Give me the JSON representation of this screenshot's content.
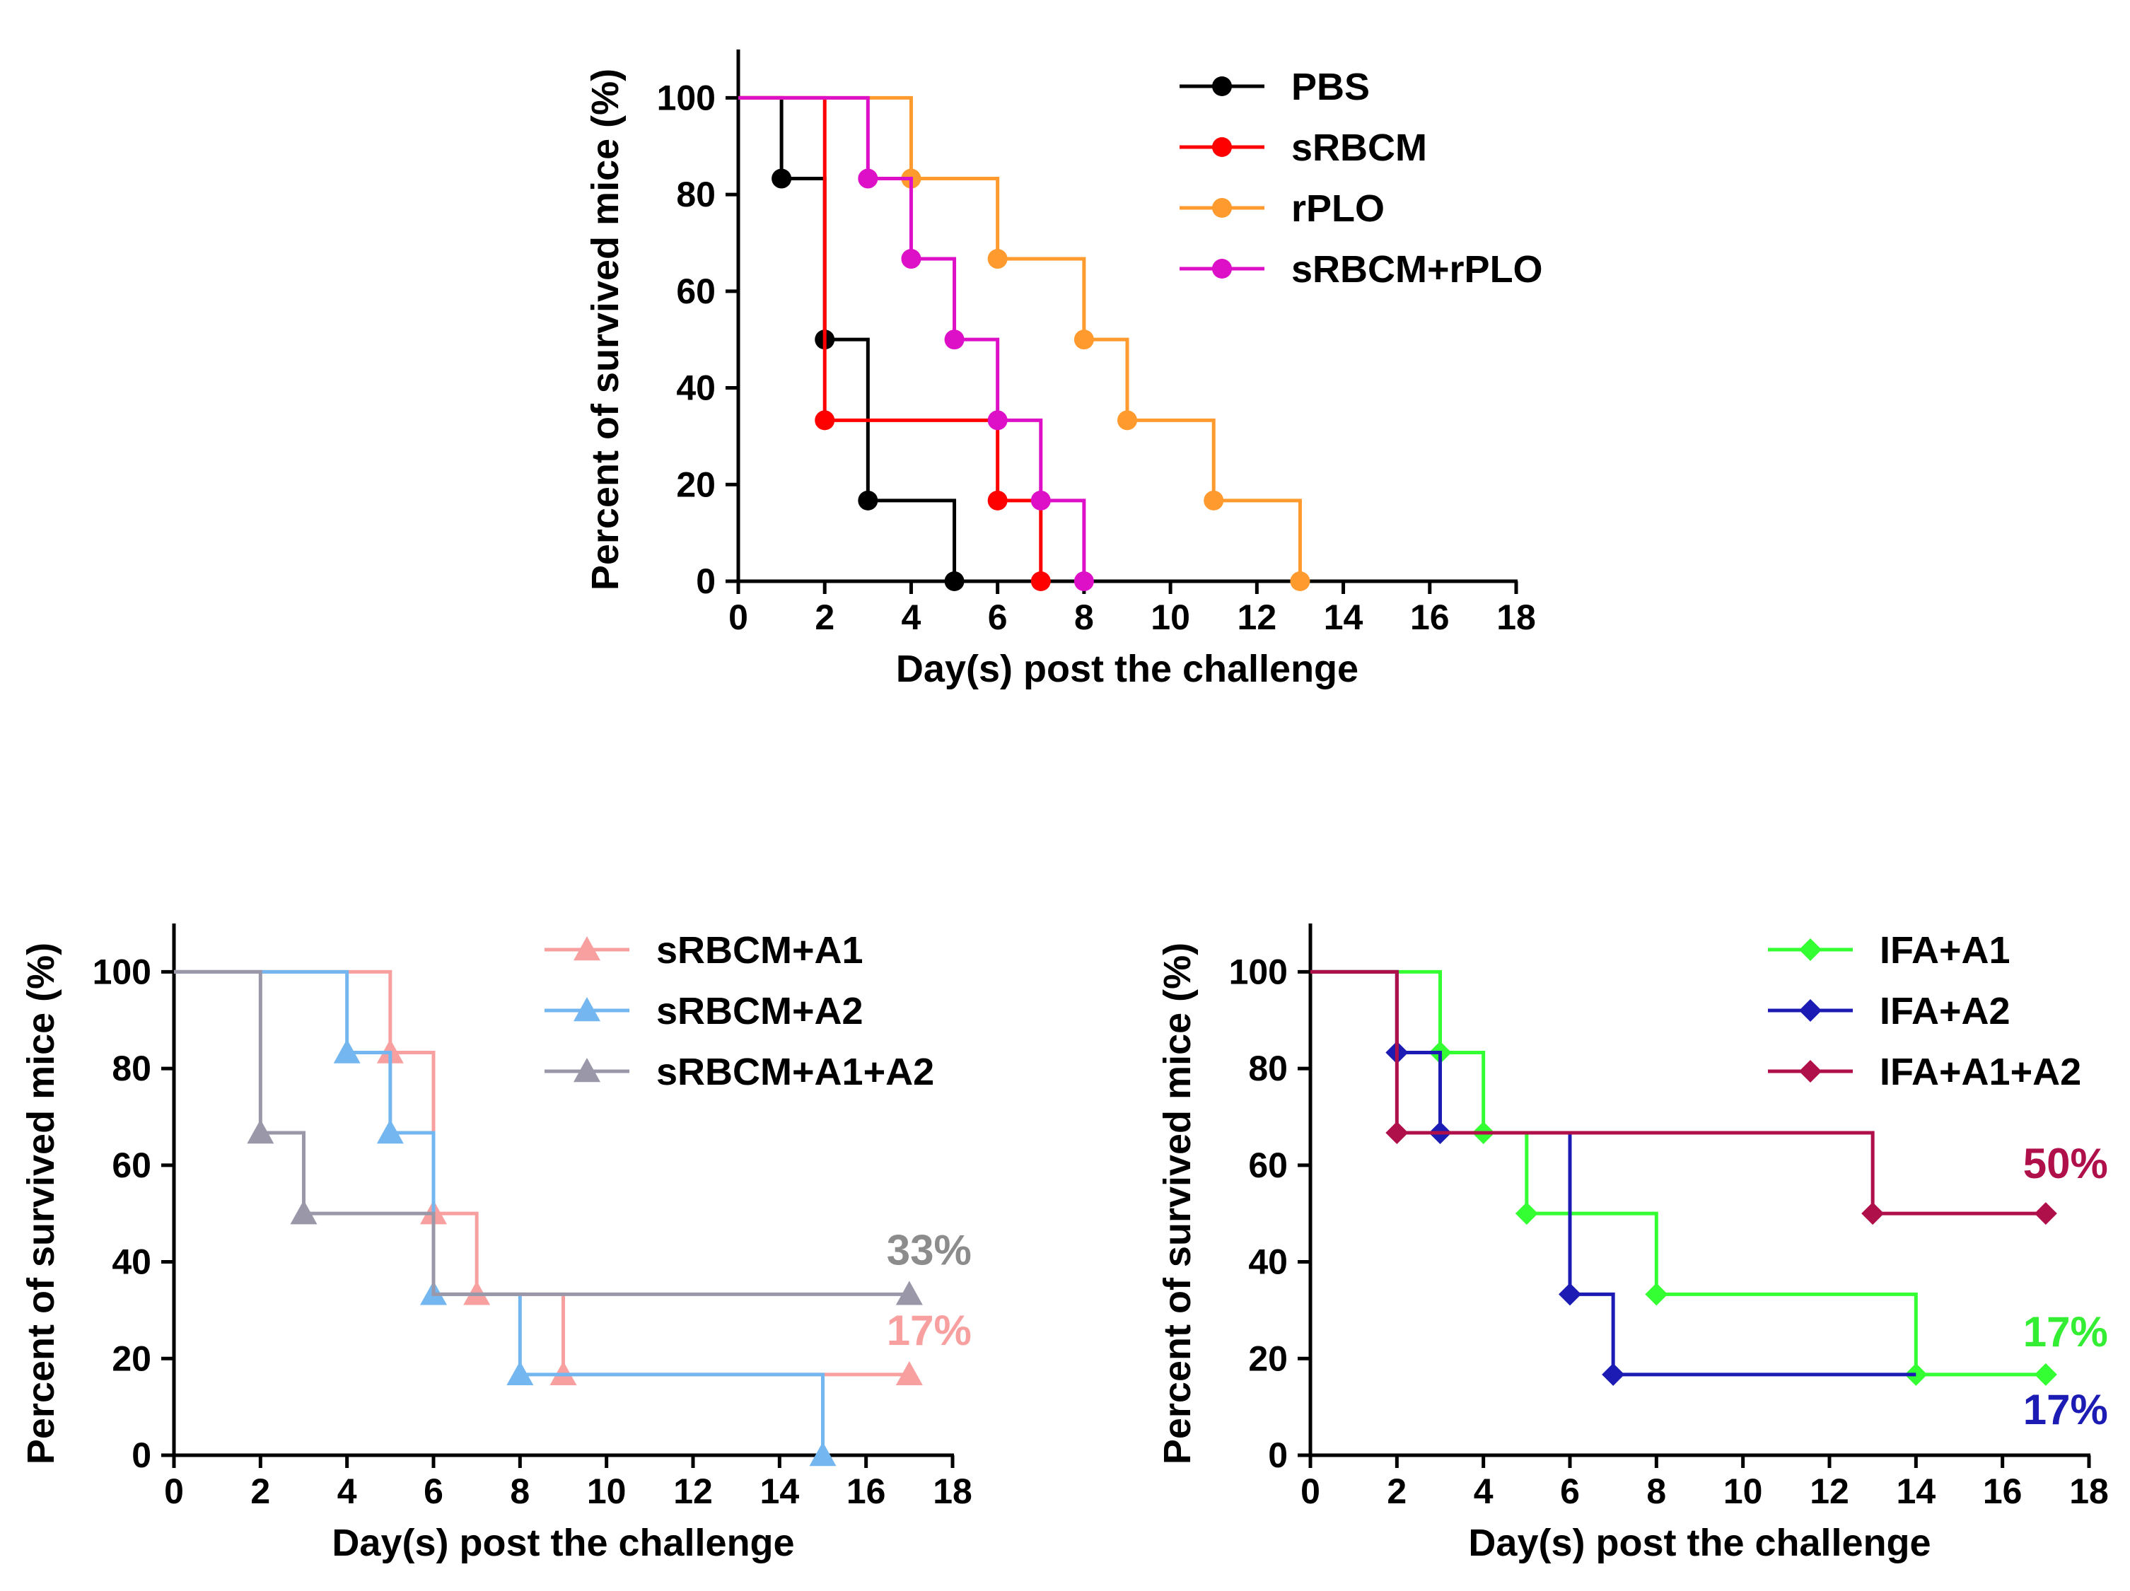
{
  "chart_data": [
    {
      "type": "line",
      "style": "step",
      "title": "",
      "xlabel": "Day(s) post the challenge",
      "ylabel": "Percent of survived mice (%)",
      "xlim": [
        0,
        18
      ],
      "ylim": [
        0,
        110
      ],
      "xticks": [
        "0",
        "2",
        "4",
        "6",
        "8",
        "10",
        "12",
        "14",
        "16",
        "18"
      ],
      "yticks": [
        "0",
        "20",
        "40",
        "60",
        "80",
        "100"
      ],
      "legend_position": "top-right",
      "series": [
        {
          "name": "PBS",
          "color": "#000000",
          "marker": "circle",
          "x": [
            0,
            1,
            2,
            3,
            5
          ],
          "y": [
            100,
            83.3,
            50,
            16.7,
            0
          ],
          "markers_at": [
            1,
            2,
            3,
            5
          ]
        },
        {
          "name": "sRBCM",
          "color": "#ff0000",
          "marker": "circle",
          "x": [
            0,
            2,
            6,
            7
          ],
          "y": [
            100,
            33.3,
            16.7,
            0
          ],
          "markers_at": [
            2,
            6,
            7
          ]
        },
        {
          "name": "rPLO",
          "color": "#ff9a2e",
          "marker": "circle",
          "x": [
            0,
            4,
            6,
            8,
            9,
            11,
            13
          ],
          "y": [
            100,
            83.3,
            66.7,
            50,
            33.3,
            16.7,
            0
          ],
          "markers_at": [
            4,
            6,
            8,
            9,
            11,
            13
          ]
        },
        {
          "name": "sRBCM+rPLO",
          "color": "#dd10c8",
          "marker": "circle",
          "x": [
            0,
            3,
            4,
            5,
            6,
            7,
            8
          ],
          "y": [
            100,
            83.3,
            66.7,
            50,
            33.3,
            16.7,
            0
          ],
          "markers_at": [
            3,
            4,
            5,
            6,
            7,
            8
          ]
        }
      ],
      "annotations": []
    },
    {
      "type": "line",
      "style": "step",
      "title": "",
      "xlabel": "Day(s) post the challenge",
      "ylabel": "Percent of survived mice (%)",
      "xlim": [
        0,
        18
      ],
      "ylim": [
        0,
        110
      ],
      "xticks": [
        "0",
        "2",
        "4",
        "6",
        "8",
        "10",
        "12",
        "14",
        "16",
        "18"
      ],
      "yticks": [
        "0",
        "20",
        "40",
        "60",
        "80",
        "100"
      ],
      "legend_position": "top-right",
      "series": [
        {
          "name": "sRBCM+A1",
          "color": "#f8a0a0",
          "marker": "triangle",
          "x": [
            0,
            5,
            6,
            7,
            9,
            17
          ],
          "y": [
            100,
            83.3,
            50,
            33.3,
            16.7,
            16.7
          ],
          "markers_at": [
            5,
            6,
            7,
            9,
            17
          ]
        },
        {
          "name": "sRBCM+A2",
          "color": "#74b7f0",
          "marker": "triangle",
          "x": [
            0,
            4,
            5,
            6,
            8,
            15
          ],
          "y": [
            100,
            83.3,
            66.7,
            33.3,
            16.7,
            0
          ],
          "markers_at": [
            4,
            5,
            6,
            8,
            15
          ]
        },
        {
          "name": "sRBCM+A1+A2",
          "color": "#9a98a8",
          "marker": "triangle",
          "x": [
            0,
            2,
            3,
            6,
            17
          ],
          "y": [
            100,
            66.7,
            50,
            33.3,
            33.3
          ],
          "markers_at": [
            2,
            3,
            17
          ]
        }
      ],
      "annotations": [
        {
          "text": "33%",
          "color": "#8c8c8c",
          "x": 17,
          "y": 33.3
        },
        {
          "text": "17%",
          "color": "#f8a0a0",
          "x": 17,
          "y": 16.7
        }
      ]
    },
    {
      "type": "line",
      "style": "step",
      "title": "",
      "xlabel": "Day(s) post the challenge",
      "ylabel": "Percent of survived mice (%)",
      "xlim": [
        0,
        18
      ],
      "ylim": [
        0,
        110
      ],
      "xticks": [
        "0",
        "2",
        "4",
        "6",
        "8",
        "10",
        "12",
        "14",
        "16",
        "18"
      ],
      "yticks": [
        "0",
        "20",
        "40",
        "60",
        "80",
        "100"
      ],
      "legend_position": "top-right",
      "series": [
        {
          "name": "IFA+A1",
          "color": "#33ff33",
          "marker": "diamond",
          "x": [
            0,
            3,
            4,
            5,
            8,
            14,
            17
          ],
          "y": [
            100,
            83.3,
            66.7,
            50,
            33.3,
            16.7,
            16.7
          ],
          "markers_at": [
            3,
            4,
            5,
            8,
            14,
            17
          ]
        },
        {
          "name": "IFA+A2",
          "color": "#1c1cb4",
          "marker": "diamond",
          "x": [
            0,
            2,
            3,
            6,
            7
          ],
          "y": [
            100,
            83.3,
            66.7,
            33.3,
            16.7
          ],
          "markers_at": [
            2,
            3,
            6,
            7
          ],
          "end_x": 14
        },
        {
          "name": "IFA+A1+A2",
          "color": "#b0104a",
          "marker": "diamond",
          "x": [
            0,
            2,
            13,
            17
          ],
          "y": [
            100,
            66.7,
            50,
            50
          ],
          "markers_at": [
            2,
            13,
            17
          ]
        }
      ],
      "annotations": [
        {
          "text": "50%",
          "color": "#b0104a",
          "x": 17,
          "y": 50
        },
        {
          "text": "17%",
          "color": "#33ee33",
          "x": 17,
          "y": 16.7
        },
        {
          "text": "17%",
          "color": "#1c1cb4",
          "x": 17,
          "y": 16.7
        }
      ]
    }
  ]
}
